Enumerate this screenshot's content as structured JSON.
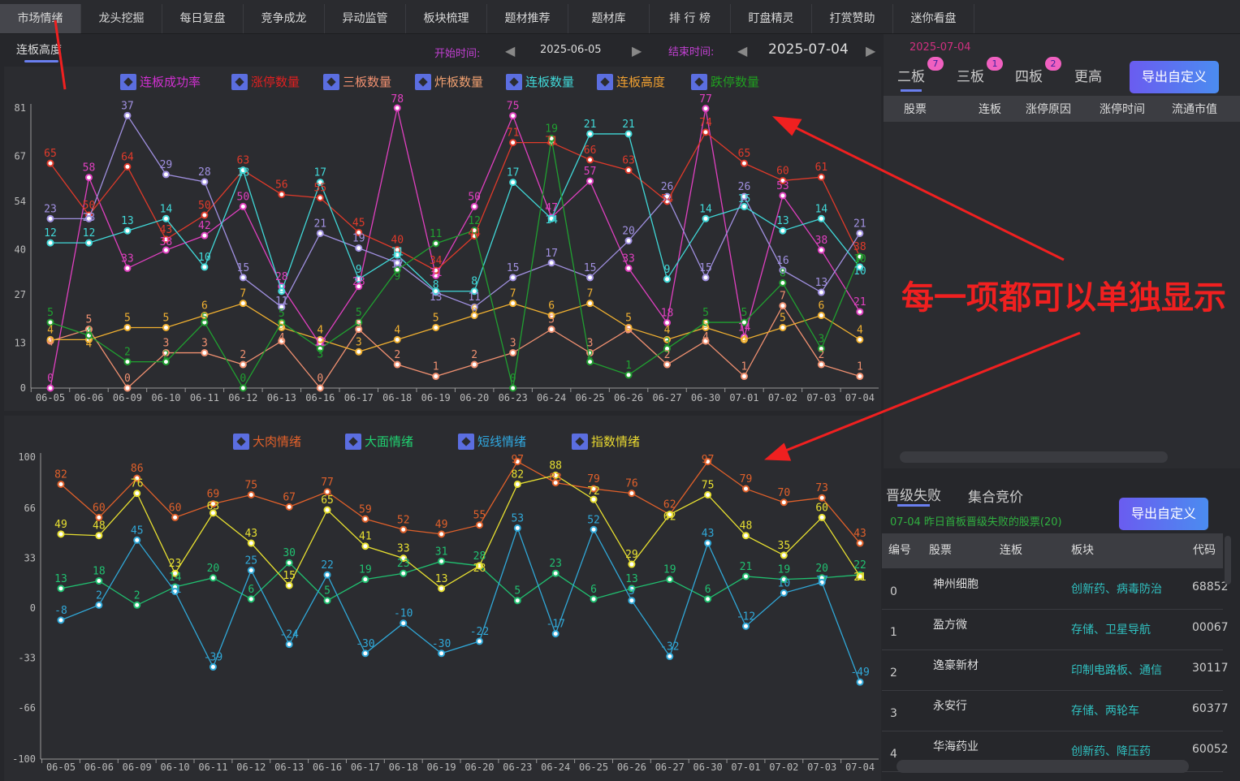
{
  "nav_tabs": [
    "市场情绪",
    "龙头挖掘",
    "每日复盘",
    "竞争成龙",
    "异动监管",
    "板块梳理",
    "题材推荐",
    "题材库",
    "排 行 榜",
    "盯盘精灵",
    "打赏赞助",
    "迷你看盘"
  ],
  "subtab": "连板高度",
  "range": {
    "start_label": "开始时间:",
    "start": "2025-06-05",
    "end_label": "结束时间:",
    "end": "2025-07-04"
  },
  "annotation": "每一项都可以单独显示",
  "right_top": {
    "date": "2025-07-04",
    "tabs": [
      {
        "label": "二板",
        "badge": "7"
      },
      {
        "label": "三板",
        "badge": "1"
      },
      {
        "label": "四板",
        "badge": "2"
      },
      {
        "label": "更高",
        "badge": null
      }
    ],
    "export": "导出自定义",
    "columns": [
      "股票",
      "连板",
      "涨停原因",
      "涨停时间",
      "流通市值"
    ]
  },
  "right_bottom": {
    "tabs": [
      "晋级失败",
      "集合竞价"
    ],
    "subtitle": "07-04  昨日首板晋级失败的股票(20)",
    "export": "导出自定义",
    "columns": [
      "编号",
      "股票",
      "连板",
      "板块",
      "代码"
    ],
    "rows": [
      {
        "id": "0",
        "name": "神州细胞",
        "sector": "创新药、病毒防治",
        "code": "68852"
      },
      {
        "id": "1",
        "name": "盈方微",
        "sector": "存储、卫星导航",
        "code": "00067"
      },
      {
        "id": "2",
        "name": "逸豪新材",
        "sector": "印制电路板、通信",
        "code": "30117"
      },
      {
        "id": "3",
        "name": "永安行",
        "sector": "存储、两轮车",
        "code": "60377"
      },
      {
        "id": "4",
        "name": "华海药业",
        "sector": "创新药、降压药",
        "code": "60052"
      }
    ]
  },
  "chart_data": [
    {
      "type": "line",
      "title": "连板高度",
      "x": [
        "06-05",
        "06-06",
        "06-09",
        "06-10",
        "06-11",
        "06-12",
        "06-13",
        "06-16",
        "06-17",
        "06-18",
        "06-19",
        "06-20",
        "06-23",
        "06-24",
        "06-25",
        "06-26",
        "06-27",
        "06-30",
        "07-01",
        "07-02",
        "07-03",
        "07-04"
      ],
      "yticks": [
        0,
        13,
        27,
        40,
        54,
        67,
        81
      ],
      "ylim": [
        0,
        81
      ],
      "legend": "top",
      "series": [
        {
          "name": "连板成功率",
          "color": "#e040c0",
          "legend_color": "#d030d0",
          "plot_multiplier": 1.05,
          "values": [
            0,
            58,
            33,
            38,
            42,
            50,
            28,
            12,
            28,
            78,
            31,
            50,
            75,
            47,
            57,
            33,
            18,
            77,
            14,
            53,
            38,
            21
          ]
        },
        {
          "name": "涨停数量",
          "color": "#e03a2a",
          "legend_color": "#e02020",
          "plot_multiplier": 1.0,
          "values": [
            65,
            50,
            64,
            43,
            50,
            63,
            56,
            55,
            45,
            40,
            34,
            44,
            71,
            71,
            66,
            63,
            54,
            74,
            65,
            60,
            61,
            38
          ]
        },
        {
          "name": "三板数量",
          "color": "#f09070",
          "legend_color": "#f09070",
          "plot_multiplier": 3.4,
          "values": [
            4,
            5,
            0,
            3,
            3,
            2,
            4,
            0,
            5,
            2,
            1,
            2,
            3,
            5,
            3,
            5,
            2,
            4,
            1,
            7,
            2,
            1
          ]
        },
        {
          "name": "炸板数量",
          "color": "#a090e0",
          "legend_color": "#f0a070",
          "plot_multiplier": 2.13,
          "values": [
            23,
            23,
            37,
            29,
            28,
            15,
            11,
            21,
            19,
            17,
            13,
            11,
            15,
            17,
            15,
            20,
            26,
            15,
            26,
            16,
            13,
            21
          ]
        },
        {
          "name": "连板数量",
          "color": "#40d8d8",
          "legend_color": "#40d8d8",
          "plot_multiplier": 3.5,
          "values": [
            12,
            12,
            13,
            14,
            10,
            18,
            8,
            17,
            9,
            11,
            8,
            8,
            17,
            14,
            21,
            21,
            9,
            14,
            15,
            13,
            14,
            10
          ]
        },
        {
          "name": "连板高度",
          "color": "#f0b030",
          "legend_color": "#f0a030",
          "plot_multiplier": 3.5,
          "values": [
            4,
            4,
            5,
            5,
            6,
            7,
            5,
            4,
            3,
            4,
            5,
            6,
            7,
            6,
            7,
            5,
            4,
            5,
            4,
            5,
            6,
            4
          ]
        },
        {
          "name": "跌停数量",
          "color": "#20a030",
          "legend_color": "#20a020",
          "plot_multiplier": 3.8,
          "values": [
            5,
            4,
            2,
            2,
            5,
            0,
            5,
            3,
            5,
            9,
            11,
            12,
            0,
            19,
            2,
            1,
            3,
            5,
            5,
            8,
            3,
            10
          ]
        }
      ]
    },
    {
      "type": "line",
      "title": "情绪",
      "x": [
        "06-05",
        "06-06",
        "06-09",
        "06-10",
        "06-11",
        "06-12",
        "06-13",
        "06-16",
        "06-17",
        "06-18",
        "06-19",
        "06-20",
        "06-23",
        "06-24",
        "06-25",
        "06-26",
        "06-27",
        "06-30",
        "07-01",
        "07-02",
        "07-03",
        "07-04"
      ],
      "yticks": [
        100,
        66,
        33,
        0,
        -33,
        -66,
        -100
      ],
      "ylim": [
        -100,
        100
      ],
      "legend": "top",
      "series": [
        {
          "name": "大肉情绪",
          "color": "#e0602a",
          "legend_color": "#e0602a",
          "plot_multiplier": 1,
          "values": [
            82,
            60,
            86,
            60,
            69,
            75,
            67,
            77,
            59,
            52,
            49,
            55,
            97,
            83,
            79,
            76,
            62,
            97,
            79,
            70,
            73,
            43
          ]
        },
        {
          "name": "大面情绪",
          "color": "#20c070",
          "legend_color": "#20d070",
          "plot_multiplier": 1,
          "values": [
            13,
            18,
            2,
            14,
            20,
            6,
            30,
            5,
            19,
            23,
            31,
            28,
            5,
            23,
            6,
            13,
            19,
            6,
            21,
            19,
            20,
            22
          ]
        },
        {
          "name": "短线情绪",
          "color": "#30a8d8",
          "legend_color": "#30a8e0",
          "plot_multiplier": 1,
          "values": [
            -8,
            2,
            45,
            11,
            -39,
            25,
            -24,
            22,
            -30,
            -10,
            -30,
            -22,
            53,
            -17,
            52,
            5,
            -32,
            43,
            -12,
            10,
            17,
            -49
          ]
        },
        {
          "name": "指数情绪",
          "color": "#e8e030",
          "legend_color": "#e8d830",
          "plot_multiplier": 1,
          "values": [
            49,
            48,
            76,
            23,
            63,
            43,
            15,
            65,
            41,
            33,
            13,
            28,
            82,
            88,
            72,
            29,
            62,
            75,
            48,
            35,
            60,
            21
          ]
        }
      ]
    }
  ]
}
